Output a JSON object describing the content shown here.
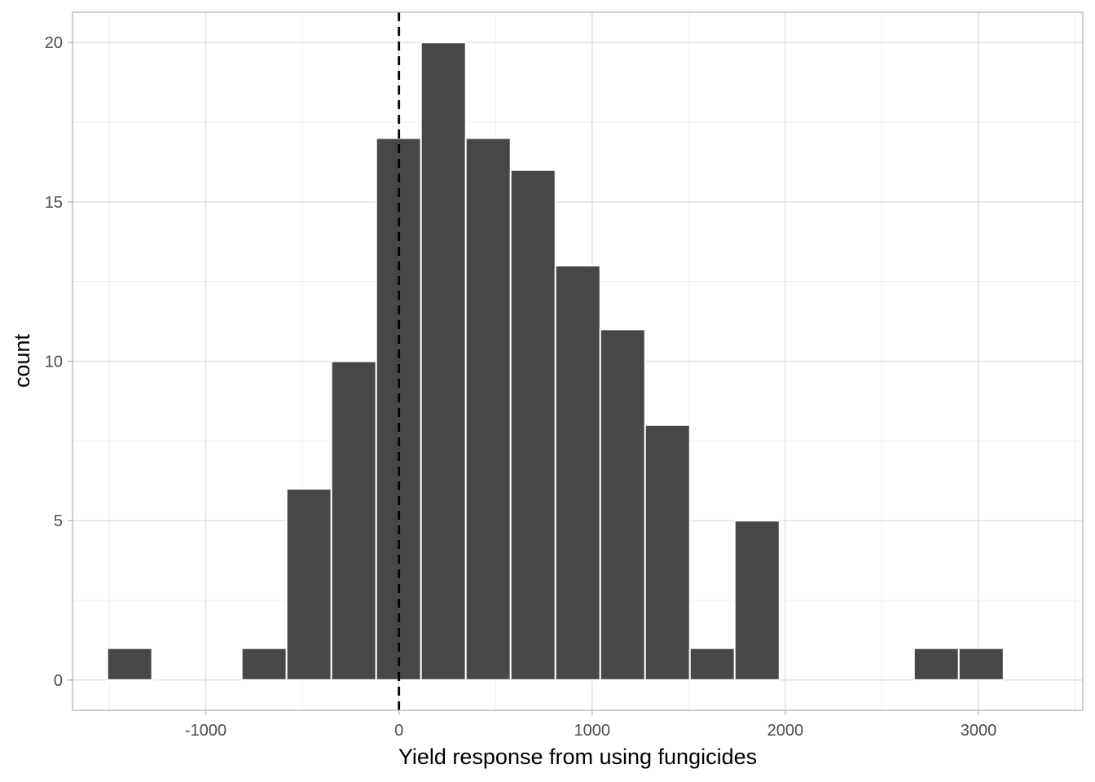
{
  "chart_data": {
    "type": "bar",
    "subtype": "histogram",
    "xlabel": "Yield response from using fungicides",
    "ylabel": "count",
    "xlim": [
      -1690,
      3540
    ],
    "ylim": [
      -0.95,
      20.95
    ],
    "x_ticks": [
      -1000,
      0,
      1000,
      2000,
      3000
    ],
    "x_tick_labels": [
      "-1000",
      "0",
      "1000",
      "2000",
      "3000"
    ],
    "y_ticks": [
      0,
      5,
      10,
      15,
      20
    ],
    "y_tick_labels": [
      "0",
      "5",
      "10",
      "15",
      "20"
    ],
    "bin_width": 232,
    "bins": [
      {
        "x0": -1510,
        "x1": -1278,
        "count": 1
      },
      {
        "x0": -1278,
        "x1": -1046,
        "count": 0
      },
      {
        "x0": -1046,
        "x1": -814,
        "count": 0
      },
      {
        "x0": -814,
        "x1": -582,
        "count": 1
      },
      {
        "x0": -582,
        "x1": -350,
        "count": 6
      },
      {
        "x0": -350,
        "x1": -118,
        "count": 10
      },
      {
        "x0": -118,
        "x1": 114,
        "count": 17
      },
      {
        "x0": 114,
        "x1": 346,
        "count": 20
      },
      {
        "x0": 346,
        "x1": 578,
        "count": 17
      },
      {
        "x0": 578,
        "x1": 810,
        "count": 16
      },
      {
        "x0": 810,
        "x1": 1042,
        "count": 13
      },
      {
        "x0": 1042,
        "x1": 1274,
        "count": 11
      },
      {
        "x0": 1274,
        "x1": 1506,
        "count": 8
      },
      {
        "x0": 1506,
        "x1": 1738,
        "count": 1
      },
      {
        "x0": 1738,
        "x1": 1970,
        "count": 5
      },
      {
        "x0": 1970,
        "x1": 2202,
        "count": 0
      },
      {
        "x0": 2202,
        "x1": 2434,
        "count": 0
      },
      {
        "x0": 2434,
        "x1": 2666,
        "count": 0
      },
      {
        "x0": 2666,
        "x1": 2898,
        "count": 1
      },
      {
        "x0": 2898,
        "x1": 3130,
        "count": 1
      }
    ],
    "vline": {
      "x": 0,
      "style": "dashed",
      "color": "#000000"
    },
    "bar_fill": "#474747",
    "bar_outline": "#ffffff",
    "grid": true,
    "theme": "light"
  }
}
